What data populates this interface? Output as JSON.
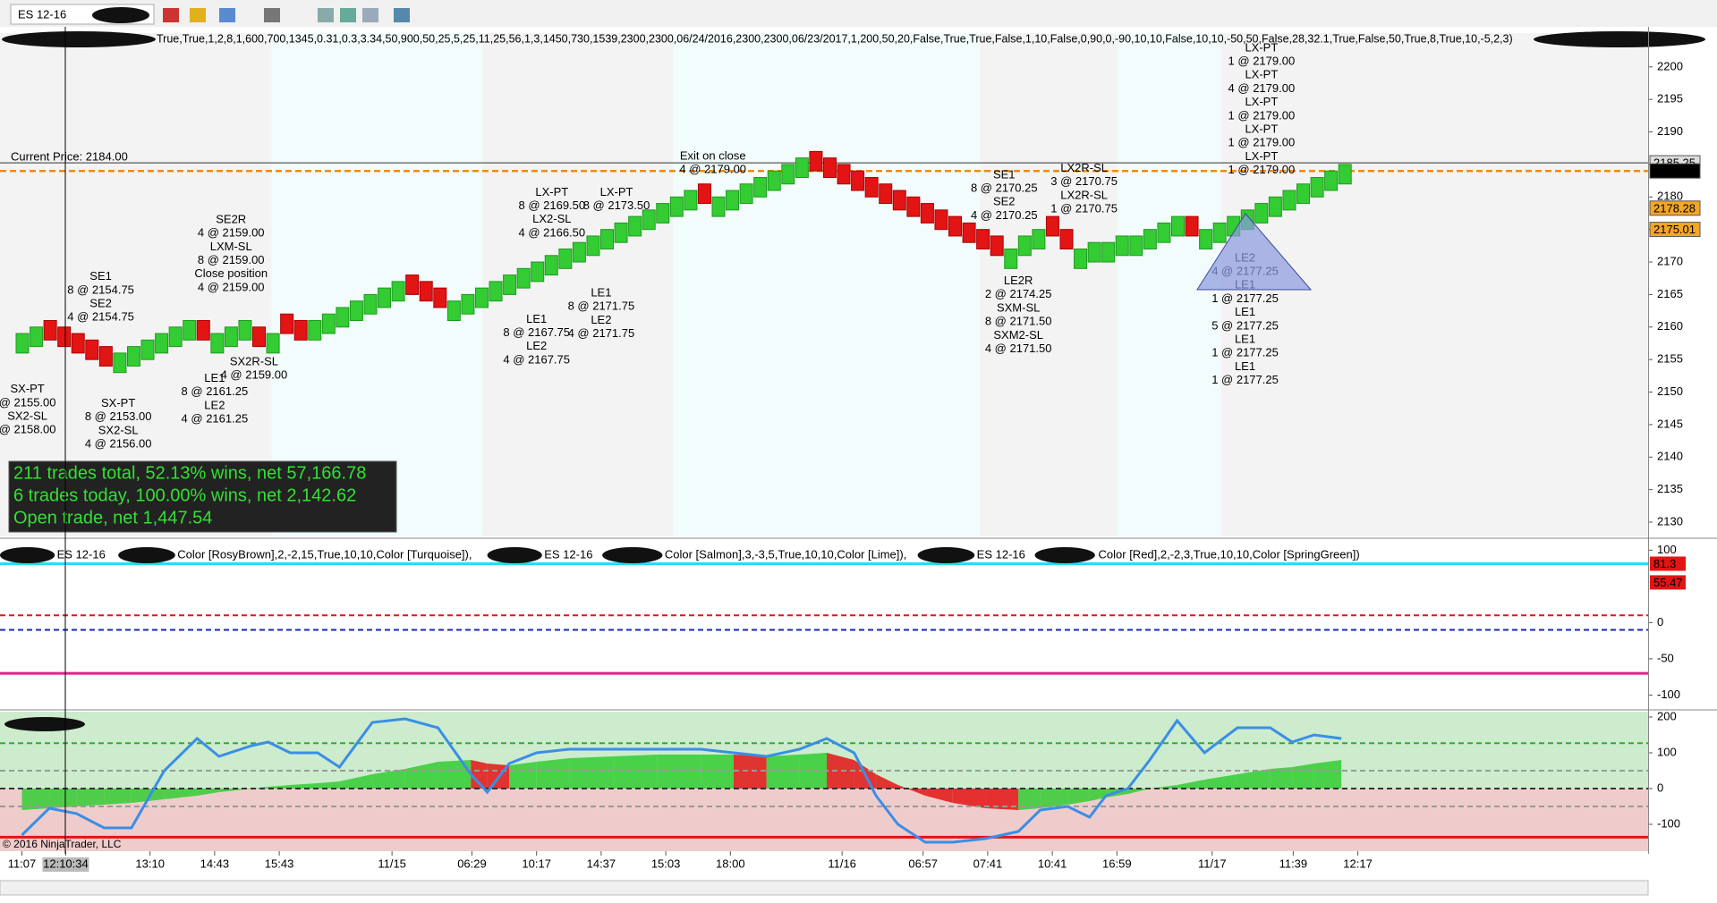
{
  "toolbar": {
    "instrument": "ES 12-16"
  },
  "x_axis_labels": [
    "11:07",
    "12:10:34",
    "13:10",
    "14:43",
    "15:43",
    "11/15",
    "06:29",
    "10:17",
    "14:37",
    "15:03",
    "18:00",
    "11/16",
    "06:57",
    "07:41",
    "10:41",
    "16:59",
    "11/17",
    "11:39",
    "12:17"
  ],
  "copyright": "© 2016 NinjaTrader, LLC",
  "chart_data": [
    {
      "type": "renko",
      "parameters": "True,True,1,2,8,1,600,700,1345,0.31,0.3,3.34,50,900,50,25,5,25,11,25,56,1,3,1450,730,1539,2300,2300,06/24/2016,2300,2300,06/23/2017,1,200,50,20,False,True,True,False,1,10,False,0,90,0,-90,10,10,False,10,10,-50,50,False,28,32.1,True,False,50,True,8,True,10,-5,2,3)",
      "ylim": [
        2127.8,
        2205.2
      ],
      "yticks": [
        2130,
        2135,
        2140,
        2145,
        2150,
        2155,
        2160,
        2165,
        2170,
        2175,
        2180,
        2185,
        2190,
        2195,
        2200
      ],
      "up_color": "#33cc33",
      "down_color": "#e31414",
      "open": [
        2156,
        2157,
        2161,
        2160,
        2159,
        2158,
        2157,
        2153,
        2154,
        2155,
        2156,
        2157,
        2158,
        2161,
        2156,
        2157,
        2158,
        2160,
        2156,
        2162,
        2161,
        2158,
        2159,
        2160,
        2161,
        2162,
        2163,
        2164,
        2168,
        2167,
        2166,
        2161,
        2162,
        2163,
        2164,
        2165,
        2166,
        2167,
        2168,
        2169,
        2170,
        2171,
        2172,
        2173,
        2174,
        2175,
        2176,
        2177,
        2178,
        2182,
        2177,
        2178,
        2179,
        2180,
        2181,
        2182,
        2183,
        2187,
        2186,
        2185,
        2184,
        2183,
        2182,
        2181,
        2180,
        2179,
        2178,
        2177,
        2176,
        2175,
        2174,
        2169,
        2171,
        2172,
        2177,
        2175,
        2169,
        2170,
        2170,
        2171,
        2171,
        2172,
        2173,
        2174,
        2177,
        2172,
        2173,
        2174,
        2175,
        2176,
        2177,
        2178,
        2179,
        2180,
        2181,
        2182
      ],
      "close": [
        2159,
        2160,
        2158,
        2157,
        2156,
        2155,
        2154,
        2156,
        2157,
        2158,
        2159,
        2160,
        2161,
        2158,
        2159,
        2160,
        2161,
        2157,
        2159,
        2159,
        2158,
        2161,
        2162,
        2163,
        2164,
        2165,
        2166,
        2167,
        2165,
        2164,
        2163,
        2164,
        2165,
        2166,
        2167,
        2168,
        2169,
        2170,
        2171,
        2172,
        2173,
        2174,
        2175,
        2176,
        2177,
        2178,
        2179,
        2180,
        2181,
        2179,
        2180,
        2181,
        2182,
        2183,
        2184,
        2185,
        2186,
        2184,
        2183,
        2182,
        2181,
        2180,
        2179,
        2178,
        2177,
        2176,
        2175,
        2174,
        2173,
        2172,
        2171,
        2172,
        2174,
        2175,
        2174,
        2172,
        2172,
        2173,
        2173,
        2174,
        2174,
        2175,
        2176,
        2177,
        2174,
        2175,
        2176,
        2177,
        2178,
        2179,
        2180,
        2181,
        2182,
        2183,
        2184,
        2185
      ],
      "current_price": 2184,
      "current_price_label": "Current Price: 2184.00",
      "current_price_color": "#f08c00",
      "price_markers": [
        {
          "value": 2185.25,
          "color": "#dddddd",
          "text_color": "#000000"
        },
        {
          "value": 2184,
          "label": "2184.00",
          "color": "#000000",
          "text_color": "#ffffff"
        },
        {
          "value": 2178.28,
          "color": "#f5a623",
          "text_color": "#000000"
        },
        {
          "value": 2175.01,
          "color": "#f5a623",
          "text_color": "#000000"
        }
      ],
      "annotations": [
        [
          "SX-PT",
          "@ 2155.00",
          "SX2-SL",
          "@ 2158.00"
        ],
        [
          "SE1",
          "8 @ 2154.75",
          "SE2",
          "4 @ 2154.75"
        ],
        [
          "SX-PT",
          "8 @ 2153.00",
          "SX2-SL",
          "4 @ 2156.00"
        ],
        [
          "SE2R",
          "4 @ 2159.00",
          "LXM-SL",
          "8 @ 2159.00",
          "Close position",
          "4 @ 2159.00"
        ],
        [
          "SX2R-SL",
          "4 @ 2159.00"
        ],
        [
          "LE1",
          "8 @ 2161.25",
          "LE2",
          "4 @ 2161.25"
        ],
        [
          "LX-PT",
          "8 @ 2169.50",
          "LX2-SL",
          "4 @ 2166.50"
        ],
        [
          "LX-PT",
          "8 @ 2173.50"
        ],
        [
          "LE1",
          "8 @ 2167.75",
          "LE2",
          "4 @ 2167.75"
        ],
        [
          "LE1",
          "8 @ 2171.75",
          "LE2",
          "4 @ 2171.75"
        ],
        [
          "Exit on close",
          "4 @ 2179.00"
        ],
        [
          "SE1",
          "8 @ 2170.25",
          "SE2",
          "4 @ 2170.25"
        ],
        [
          "LX2R-SL",
          "3 @ 2170.75",
          "LX2R-SL",
          "1 @ 2170.75"
        ],
        [
          "LE2R",
          "2 @ 2174.25",
          "SXM-SL",
          "8 @ 2171.50",
          "SXM2-SL",
          "4 @ 2171.50"
        ],
        [
          "LX-PT",
          "1 @ 2179.00",
          "LX-PT",
          "4 @ 2179.00",
          "LX-PT",
          "1 @ 2179.00",
          "LX-PT",
          "1 @ 2179.00",
          "LX-PT",
          "1 @ 2179.00"
        ],
        [
          "LE2",
          "4 @ 2177.25",
          "LE1",
          "1 @ 2177.25",
          "LE1",
          "5 @ 2177.25",
          "LE1",
          "1 @ 2177.25",
          "LE1",
          "1 @ 2177.25"
        ]
      ],
      "stats": [
        "211 trades total, 52.13% wins, net 57,166.78",
        "6 trades today, 100.00% wins, net 2,142.62",
        "Open trade, net 1,447.54"
      ]
    },
    {
      "type": "oscillator",
      "header": [
        "ES  12-16",
        "Color  [RosyBrown],2,-2,15,True,10,10,Color  [Turquoise]),",
        "ES  12-16",
        "Color  [Salmon],3,-3,5,True,10,10,Color  [Lime]),",
        "ES  12-16",
        "Color  [Red],2,-2,3,True,10,10,Color  [SpringGreen])"
      ],
      "ylim": [
        -118,
        114
      ],
      "yticks": [
        -100,
        -50,
        0,
        100
      ],
      "levels": [
        {
          "value": 81.3,
          "color": "#22e0f0",
          "dash": false
        },
        {
          "value": 10,
          "color": "#e31414",
          "dash": true
        },
        {
          "value": -10,
          "color": "#1a2ab0",
          "dash": true
        },
        {
          "value": -70,
          "color": "#e8208a",
          "dash": false
        }
      ],
      "markers": [
        {
          "value": 81.3,
          "color": "#e31414"
        },
        {
          "value": 55.47,
          "color": "#e31414"
        }
      ]
    },
    {
      "type": "momentum",
      "ylim": [
        -175,
        215
      ],
      "yticks": [
        -100,
        0,
        100,
        200
      ],
      "up_color": "#33cc33",
      "down_color": "#e31414",
      "line_color": "#3a8ee6",
      "levels": [
        {
          "value": 127,
          "color": "#33aa33",
          "dash": true
        },
        {
          "value": 50,
          "color": "#999999",
          "dash": true
        },
        {
          "value": 0,
          "color": "#333333",
          "dash": true
        },
        {
          "value": -50,
          "color": "#999999",
          "dash": true
        },
        {
          "value": -136,
          "color": "#e31414",
          "dash": false
        }
      ],
      "line": [
        -130,
        -55,
        -70,
        -110,
        -110,
        50,
        140,
        90,
        120,
        130,
        100,
        100,
        60,
        185,
        195,
        170,
        40,
        -10,
        70,
        100,
        110,
        110,
        110,
        110,
        100,
        90,
        110,
        140,
        100,
        -20,
        -100,
        -150,
        -150,
        -140,
        -120,
        -60,
        -50,
        -80,
        -20,
        0,
        80,
        190,
        100,
        170,
        170,
        130,
        150,
        140
      ],
      "histogram": [
        -60,
        -55,
        -50,
        -45,
        -40,
        -30,
        -20,
        -10,
        0,
        5,
        10,
        15,
        20,
        40,
        55,
        75,
        80,
        70,
        65,
        75,
        85,
        90,
        95,
        95,
        95,
        90,
        95,
        100,
        80,
        40,
        10,
        -20,
        -40,
        -55,
        -60,
        -55,
        -45,
        -35,
        -25,
        -15,
        0,
        10,
        25,
        40,
        55,
        60,
        70,
        80
      ]
    }
  ]
}
